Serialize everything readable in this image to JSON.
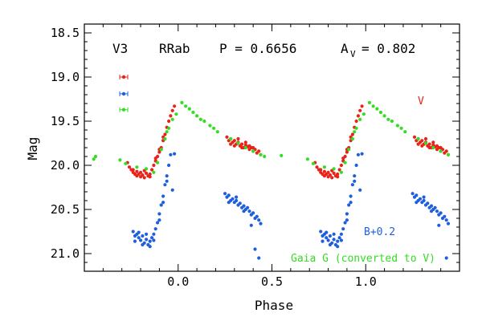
{
  "chart_data": {
    "type": "scatter",
    "xlabel": "Phase",
    "ylabel": "Mag",
    "xlim": [
      -0.5,
      1.5
    ],
    "ylim": [
      21.2,
      18.4
    ],
    "y_inverted": true,
    "x_ticks": [
      "0.0",
      "0.5",
      "1.0"
    ],
    "x_tick_values": [
      0.0,
      0.5,
      1.0
    ],
    "y_ticks": [
      "18.5",
      "19.0",
      "19.5",
      "20.0",
      "20.5",
      "21.0"
    ],
    "y_tick_values": [
      18.5,
      19.0,
      19.5,
      20.0,
      20.5,
      21.0
    ],
    "header": {
      "star": "V3",
      "type": "RRab",
      "period": "P = 0.6656",
      "amp_sym": "A",
      "amp_sub": "V",
      "amp_val": "= 0.802"
    },
    "annotations": {
      "v_label": "V",
      "b_label": "B+0.2",
      "gaia_label": "Gaia G (converted to V)"
    },
    "colors": {
      "V": "#e8231a",
      "B": "#1f5fdc",
      "G": "#33dd22"
    },
    "error_bars": [
      {
        "series": "V",
        "x": -0.29,
        "y": 19.0,
        "err": 0.025
      },
      {
        "series": "B",
        "x": -0.29,
        "y": 19.19,
        "err": 0.025
      },
      {
        "series": "G",
        "x": -0.29,
        "y": 19.37,
        "err": 0.025
      }
    ],
    "series": [
      {
        "name": "V",
        "color": "#e8231a",
        "points": [
          [
            -0.27,
            19.97
          ],
          [
            -0.26,
            20.02
          ],
          [
            -0.25,
            20.05
          ],
          [
            -0.24,
            20.08
          ],
          [
            -0.23,
            20.1
          ],
          [
            -0.22,
            20.12
          ],
          [
            -0.21,
            20.1
          ],
          [
            -0.2,
            20.13
          ],
          [
            -0.19,
            20.11
          ],
          [
            -0.18,
            20.14
          ],
          [
            -0.17,
            20.09
          ],
          [
            -0.16,
            20.12
          ],
          [
            -0.15,
            20.1
          ],
          [
            -0.14,
            20.05
          ],
          [
            -0.13,
            20.0
          ],
          [
            -0.12,
            19.95
          ],
          [
            -0.11,
            19.9
          ],
          [
            -0.1,
            19.85
          ],
          [
            -0.09,
            19.8
          ],
          [
            -0.08,
            19.72
          ],
          [
            -0.07,
            19.65
          ],
          [
            -0.06,
            19.57
          ],
          [
            -0.05,
            19.5
          ],
          [
            -0.04,
            19.44
          ],
          [
            -0.03,
            19.38
          ],
          [
            -0.02,
            19.33
          ],
          [
            -0.24,
            20.05
          ],
          [
            -0.22,
            20.07
          ],
          [
            -0.2,
            20.08
          ],
          [
            -0.18,
            20.06
          ],
          [
            -0.15,
            20.13
          ],
          [
            -0.12,
            19.92
          ],
          [
            -0.1,
            19.82
          ],
          [
            -0.08,
            19.68
          ],
          [
            0.26,
            19.68
          ],
          [
            0.27,
            19.72
          ],
          [
            0.28,
            19.7
          ],
          [
            0.29,
            19.74
          ],
          [
            0.3,
            19.72
          ],
          [
            0.31,
            19.76
          ],
          [
            0.32,
            19.74
          ],
          [
            0.33,
            19.78
          ],
          [
            0.34,
            19.76
          ],
          [
            0.35,
            19.8
          ],
          [
            0.36,
            19.77
          ],
          [
            0.37,
            19.79
          ],
          [
            0.38,
            19.82
          ],
          [
            0.39,
            19.8
          ],
          [
            0.4,
            19.84
          ],
          [
            0.41,
            19.82
          ],
          [
            0.42,
            19.86
          ],
          [
            0.43,
            19.84
          ],
          [
            0.44,
            19.88
          ],
          [
            0.28,
            19.76
          ],
          [
            0.3,
            19.78
          ],
          [
            0.32,
            19.7
          ],
          [
            0.34,
            19.8
          ],
          [
            0.36,
            19.74
          ],
          [
            0.38,
            19.78
          ],
          [
            0.4,
            19.8
          ],
          [
            0.73,
            19.97
          ],
          [
            0.74,
            20.02
          ],
          [
            0.75,
            20.05
          ],
          [
            0.76,
            20.08
          ],
          [
            0.77,
            20.1
          ],
          [
            0.78,
            20.12
          ],
          [
            0.79,
            20.1
          ],
          [
            0.8,
            20.13
          ],
          [
            0.81,
            20.11
          ],
          [
            0.82,
            20.14
          ],
          [
            0.83,
            20.09
          ],
          [
            0.84,
            20.12
          ],
          [
            0.85,
            20.1
          ],
          [
            0.86,
            20.05
          ],
          [
            0.87,
            20.0
          ],
          [
            0.88,
            19.95
          ],
          [
            0.89,
            19.9
          ],
          [
            0.9,
            19.85
          ],
          [
            0.91,
            19.8
          ],
          [
            0.92,
            19.72
          ],
          [
            0.93,
            19.65
          ],
          [
            0.94,
            19.57
          ],
          [
            0.95,
            19.5
          ],
          [
            0.96,
            19.44
          ],
          [
            0.97,
            19.38
          ],
          [
            0.98,
            19.33
          ],
          [
            0.76,
            20.05
          ],
          [
            0.78,
            20.07
          ],
          [
            0.8,
            20.08
          ],
          [
            0.82,
            20.06
          ],
          [
            0.85,
            20.13
          ],
          [
            0.88,
            19.92
          ],
          [
            0.9,
            19.82
          ],
          [
            0.92,
            19.68
          ],
          [
            1.26,
            19.68
          ],
          [
            1.27,
            19.72
          ],
          [
            1.28,
            19.7
          ],
          [
            1.29,
            19.74
          ],
          [
            1.3,
            19.72
          ],
          [
            1.31,
            19.76
          ],
          [
            1.32,
            19.74
          ],
          [
            1.33,
            19.78
          ],
          [
            1.34,
            19.76
          ],
          [
            1.35,
            19.8
          ],
          [
            1.36,
            19.77
          ],
          [
            1.37,
            19.79
          ],
          [
            1.38,
            19.82
          ],
          [
            1.39,
            19.8
          ],
          [
            1.4,
            19.84
          ],
          [
            1.41,
            19.82
          ],
          [
            1.42,
            19.86
          ],
          [
            1.43,
            19.84
          ],
          [
            1.44,
            19.88
          ],
          [
            1.28,
            19.76
          ],
          [
            1.3,
            19.78
          ],
          [
            1.32,
            19.7
          ],
          [
            1.34,
            19.8
          ],
          [
            1.36,
            19.74
          ],
          [
            1.38,
            19.78
          ],
          [
            1.4,
            19.8
          ]
        ]
      },
      {
        "name": "B+0.2",
        "color": "#1f5fdc",
        "points": [
          [
            -0.24,
            20.75
          ],
          [
            -0.23,
            20.8
          ],
          [
            -0.22,
            20.78
          ],
          [
            -0.21,
            20.82
          ],
          [
            -0.2,
            20.85
          ],
          [
            -0.19,
            20.8
          ],
          [
            -0.18,
            20.88
          ],
          [
            -0.17,
            20.84
          ],
          [
            -0.16,
            20.9
          ],
          [
            -0.15,
            20.86
          ],
          [
            -0.14,
            20.82
          ],
          [
            -0.13,
            20.78
          ],
          [
            -0.12,
            20.72
          ],
          [
            -0.11,
            20.65
          ],
          [
            -0.23,
            20.86
          ],
          [
            -0.21,
            20.76
          ],
          [
            -0.19,
            20.9
          ],
          [
            -0.17,
            20.78
          ],
          [
            -0.15,
            20.92
          ],
          [
            -0.13,
            20.85
          ],
          [
            -0.1,
            20.55
          ],
          [
            -0.09,
            20.45
          ],
          [
            -0.08,
            20.35
          ],
          [
            -0.07,
            20.22
          ],
          [
            -0.06,
            20.12
          ],
          [
            -0.05,
            20.0
          ],
          [
            -0.04,
            19.88
          ],
          [
            -0.03,
            20.28
          ],
          [
            -0.02,
            19.87
          ],
          [
            -0.1,
            20.62
          ],
          [
            -0.08,
            20.42
          ],
          [
            -0.06,
            20.18
          ],
          [
            0.25,
            20.32
          ],
          [
            0.26,
            20.36
          ],
          [
            0.27,
            20.34
          ],
          [
            0.28,
            20.4
          ],
          [
            0.29,
            20.38
          ],
          [
            0.3,
            20.42
          ],
          [
            0.31,
            20.4
          ],
          [
            0.32,
            20.45
          ],
          [
            0.33,
            20.43
          ],
          [
            0.34,
            20.48
          ],
          [
            0.35,
            20.46
          ],
          [
            0.36,
            20.5
          ],
          [
            0.37,
            20.48
          ],
          [
            0.38,
            20.52
          ],
          [
            0.39,
            20.56
          ],
          [
            0.4,
            20.54
          ],
          [
            0.41,
            20.6
          ],
          [
            0.42,
            20.58
          ],
          [
            0.43,
            20.62
          ],
          [
            0.44,
            20.66
          ],
          [
            0.27,
            20.42
          ],
          [
            0.31,
            20.36
          ],
          [
            0.35,
            20.52
          ],
          [
            0.39,
            20.68
          ],
          [
            0.41,
            20.95
          ],
          [
            0.43,
            21.05
          ],
          [
            0.76,
            20.75
          ],
          [
            0.77,
            20.8
          ],
          [
            0.78,
            20.78
          ],
          [
            0.79,
            20.82
          ],
          [
            0.8,
            20.85
          ],
          [
            0.81,
            20.8
          ],
          [
            0.82,
            20.88
          ],
          [
            0.83,
            20.84
          ],
          [
            0.84,
            20.9
          ],
          [
            0.85,
            20.86
          ],
          [
            0.86,
            20.82
          ],
          [
            0.87,
            20.78
          ],
          [
            0.88,
            20.72
          ],
          [
            0.89,
            20.65
          ],
          [
            0.77,
            20.86
          ],
          [
            0.79,
            20.76
          ],
          [
            0.81,
            20.9
          ],
          [
            0.83,
            20.78
          ],
          [
            0.85,
            20.92
          ],
          [
            0.87,
            20.85
          ],
          [
            0.9,
            20.55
          ],
          [
            0.91,
            20.45
          ],
          [
            0.92,
            20.35
          ],
          [
            0.93,
            20.22
          ],
          [
            0.94,
            20.12
          ],
          [
            0.95,
            20.0
          ],
          [
            0.96,
            19.88
          ],
          [
            0.97,
            20.28
          ],
          [
            0.98,
            19.87
          ],
          [
            0.9,
            20.62
          ],
          [
            0.92,
            20.42
          ],
          [
            0.94,
            20.18
          ],
          [
            1.25,
            20.32
          ],
          [
            1.26,
            20.36
          ],
          [
            1.27,
            20.34
          ],
          [
            1.28,
            20.4
          ],
          [
            1.29,
            20.38
          ],
          [
            1.3,
            20.42
          ],
          [
            1.31,
            20.4
          ],
          [
            1.32,
            20.45
          ],
          [
            1.33,
            20.43
          ],
          [
            1.34,
            20.48
          ],
          [
            1.35,
            20.46
          ],
          [
            1.36,
            20.5
          ],
          [
            1.37,
            20.48
          ],
          [
            1.38,
            20.52
          ],
          [
            1.39,
            20.56
          ],
          [
            1.4,
            20.54
          ],
          [
            1.41,
            20.6
          ],
          [
            1.42,
            20.58
          ],
          [
            1.43,
            20.62
          ],
          [
            1.44,
            20.66
          ],
          [
            1.27,
            20.42
          ],
          [
            1.31,
            20.36
          ],
          [
            1.35,
            20.52
          ],
          [
            1.39,
            20.68
          ],
          [
            1.43,
            21.05
          ]
        ]
      },
      {
        "name": "Gaia G (converted to V)",
        "color": "#33dd22",
        "points": [
          [
            -0.45,
            19.93
          ],
          [
            -0.44,
            19.9
          ],
          [
            -0.31,
            19.94
          ],
          [
            -0.28,
            19.98
          ],
          [
            -0.22,
            20.02
          ],
          [
            -0.17,
            20.04
          ],
          [
            -0.13,
            20.08
          ],
          [
            -0.11,
            19.97
          ],
          [
            -0.09,
            19.82
          ],
          [
            -0.07,
            19.7
          ],
          [
            -0.06,
            19.62
          ],
          [
            -0.05,
            19.58
          ],
          [
            -0.03,
            19.48
          ],
          [
            -0.01,
            19.42
          ],
          [
            0.02,
            19.29
          ],
          [
            0.04,
            19.33
          ],
          [
            0.06,
            19.36
          ],
          [
            0.08,
            19.4
          ],
          [
            0.1,
            19.44
          ],
          [
            0.12,
            19.48
          ],
          [
            0.14,
            19.5
          ],
          [
            0.17,
            19.55
          ],
          [
            0.19,
            19.58
          ],
          [
            0.21,
            19.62
          ],
          [
            0.28,
            19.7
          ],
          [
            0.32,
            19.75
          ],
          [
            0.36,
            19.8
          ],
          [
            0.4,
            19.84
          ],
          [
            0.44,
            19.88
          ],
          [
            0.46,
            19.9
          ],
          [
            0.55,
            19.89
          ],
          [
            0.69,
            19.93
          ],
          [
            0.72,
            19.98
          ],
          [
            0.78,
            20.02
          ],
          [
            0.83,
            20.04
          ],
          [
            0.87,
            20.08
          ],
          [
            0.89,
            19.97
          ],
          [
            0.91,
            19.82
          ],
          [
            0.93,
            19.7
          ],
          [
            0.94,
            19.62
          ],
          [
            0.95,
            19.58
          ],
          [
            0.97,
            19.48
          ],
          [
            0.99,
            19.42
          ],
          [
            1.02,
            19.29
          ],
          [
            1.04,
            19.33
          ],
          [
            1.06,
            19.36
          ],
          [
            1.08,
            19.4
          ],
          [
            1.1,
            19.44
          ],
          [
            1.12,
            19.48
          ],
          [
            1.14,
            19.5
          ],
          [
            1.17,
            19.55
          ],
          [
            1.19,
            19.58
          ],
          [
            1.21,
            19.62
          ],
          [
            1.28,
            19.7
          ],
          [
            1.32,
            19.75
          ],
          [
            1.36,
            19.8
          ],
          [
            1.4,
            19.84
          ],
          [
            1.44,
            19.88
          ]
        ]
      }
    ]
  }
}
